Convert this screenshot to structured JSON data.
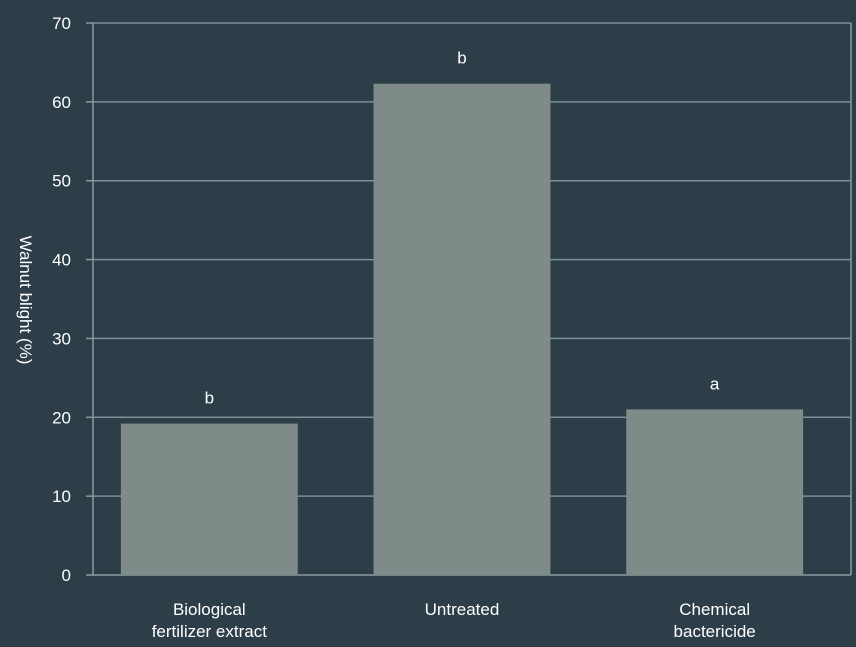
{
  "chart_data": {
    "type": "bar",
    "title": "",
    "xlabel": "",
    "ylabel": "Walnut blight (%)",
    "ylim": [
      0,
      70
    ],
    "yticks": [
      0,
      10,
      20,
      30,
      40,
      50,
      60,
      70
    ],
    "grid": true,
    "categories": [
      [
        "Biological",
        "fertilizer extract"
      ],
      [
        "Untreated"
      ],
      [
        "Chemical",
        "bactericide"
      ]
    ],
    "values": [
      19.2,
      62.3,
      21.0
    ],
    "significance_labels": [
      "b",
      "b",
      "a"
    ]
  },
  "colors": {
    "background": "#2d3e48",
    "bar": "#7f8b89",
    "grid": "#7d8f99",
    "axis": "#8a9aa3",
    "text": "#ffffff"
  }
}
